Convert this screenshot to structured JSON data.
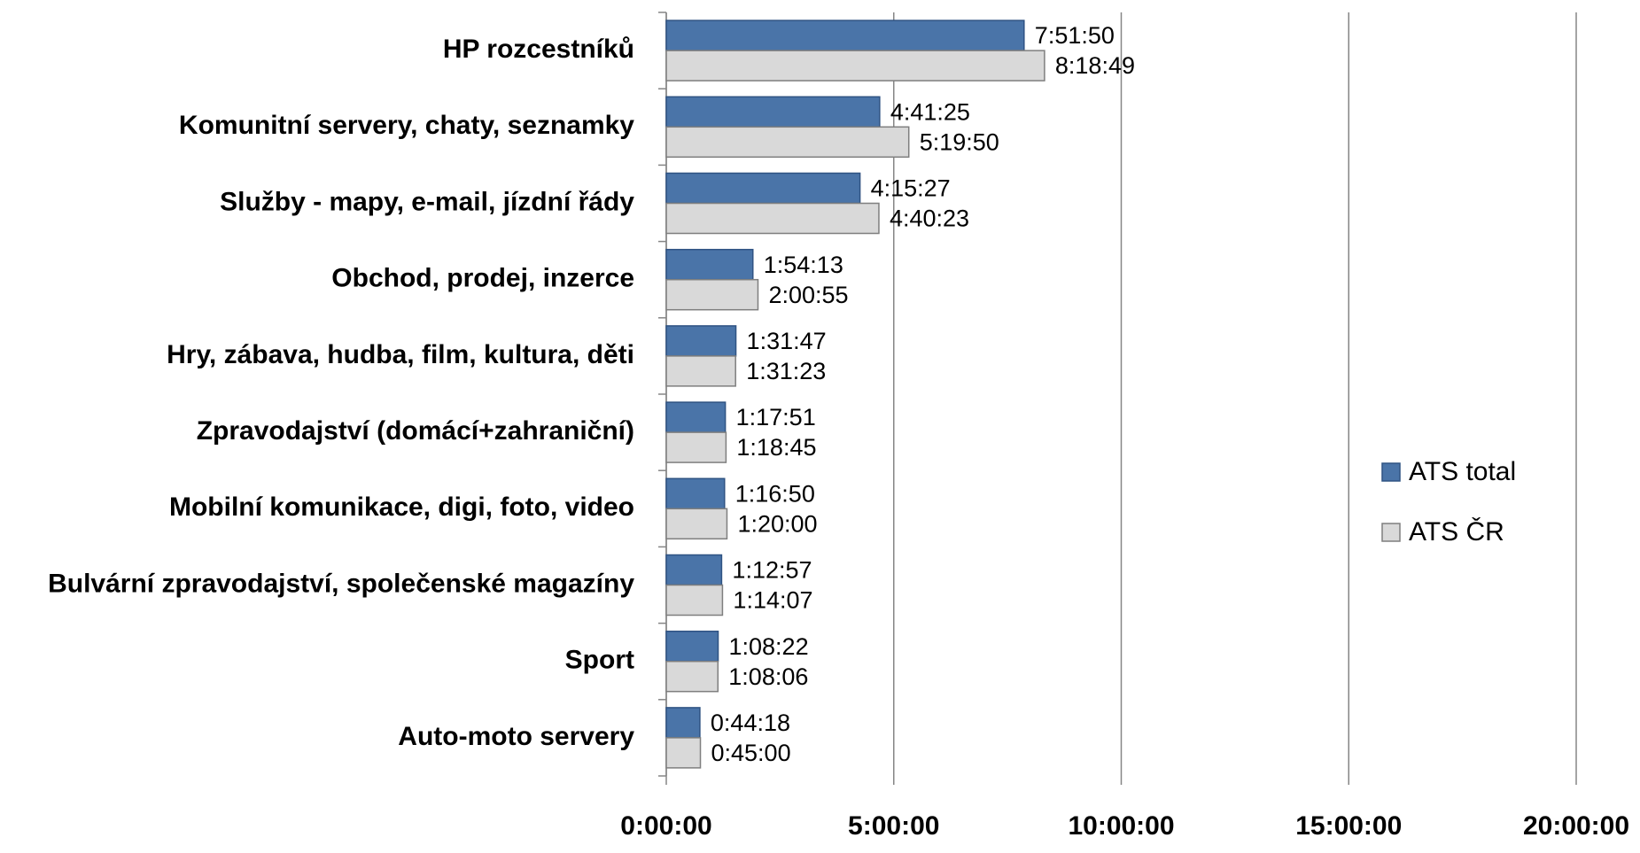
{
  "chart_data": {
    "type": "bar",
    "orientation": "horizontal",
    "categories": [
      "HP rozcestníků",
      "Komunitní servery, chaty, seznamky",
      "Služby - mapy, e-mail, jízdní řády",
      "Obchod, prodej, inzerce",
      "Hry, zábava, hudba, film, kultura, děti",
      "Zpravodajství (domácí+zahraniční)",
      "Mobilní komunikace, digi, foto, video",
      "Bulvární zpravodajství, společenské magazíny",
      "Sport",
      "Auto-moto servery"
    ],
    "series": [
      {
        "name": "ATS total",
        "color": "#4a74a8",
        "values": [
          28310,
          16885,
          15327,
          6853,
          5507,
          4671,
          4610,
          4377,
          4102,
          2658
        ],
        "value_labels": [
          "7:51:50",
          "4:41:25",
          "4:15:27",
          "1:54:13",
          "1:31:47",
          "1:17:51",
          "1:16:50",
          "1:12:57",
          "1:08:22",
          "0:44:18"
        ]
      },
      {
        "name": "ATS ČR",
        "color": "#d9d9d9",
        "values": [
          29929,
          19190,
          16823,
          7255,
          5483,
          4725,
          4800,
          4447,
          4086,
          2700
        ],
        "value_labels": [
          "8:18:49",
          "5:19:50",
          "4:40:23",
          "2:00:55",
          "1:31:23",
          "1:18:45",
          "1:20:00",
          "1:14:07",
          "1:08:06",
          "0:45:00"
        ]
      }
    ],
    "xlim": [
      0,
      72000
    ],
    "xticks": [
      {
        "value": 0,
        "label": "0:00:00"
      },
      {
        "value": 18000,
        "label": "5:00:00"
      },
      {
        "value": 36000,
        "label": "10:00:00"
      },
      {
        "value": 54000,
        "label": "15:00:00"
      },
      {
        "value": 72000,
        "label": "20:00:00"
      }
    ],
    "grid": true,
    "legend": "right"
  }
}
